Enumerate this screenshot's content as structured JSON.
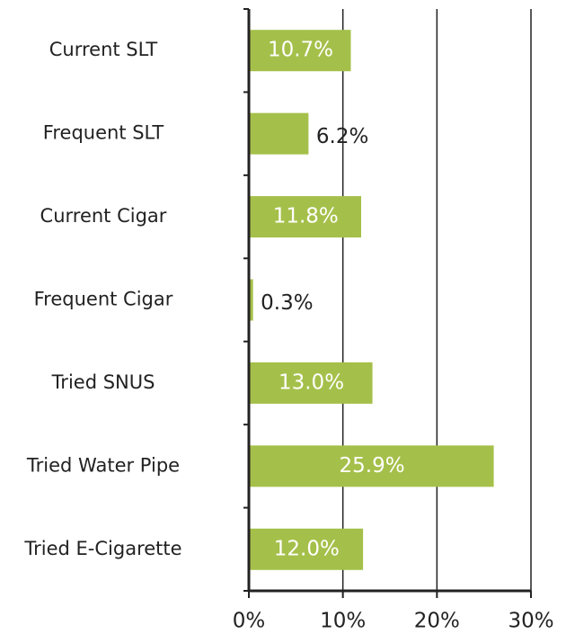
{
  "chart_data": {
    "type": "barh",
    "categories": [
      "Current SLT",
      "Frequent SLT",
      "Current Cigar",
      "Frequent Cigar",
      "Tried SNUS",
      "Tried Water Pipe",
      "Tried E-Cigarette"
    ],
    "values": [
      10.7,
      6.2,
      11.8,
      0.3,
      13.0,
      25.9,
      12.0
    ],
    "value_labels": [
      "10.7%",
      "6.2%",
      "11.8%",
      "0.3%",
      "13.0%",
      "25.9%",
      "12.0%"
    ],
    "color": "#a5c04a",
    "xlim": [
      0,
      30
    ],
    "xticks": [
      {
        "value": 0,
        "label": "0%"
      },
      {
        "value": 10,
        "label": "10%"
      },
      {
        "value": 20,
        "label": "20%"
      },
      {
        "value": 30,
        "label": "30%"
      }
    ],
    "grid": true
  }
}
